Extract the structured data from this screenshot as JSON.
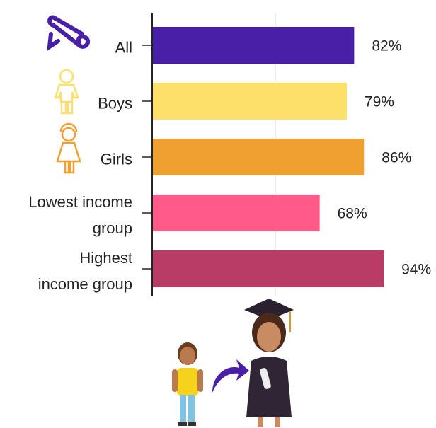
{
  "chart_data": {
    "type": "bar",
    "orientation": "horizontal",
    "categories": [
      "All",
      "Boys",
      "Girls",
      "Lowest income\ngroup",
      "Highest\nincome group"
    ],
    "values": [
      82,
      79,
      86,
      68,
      94
    ],
    "value_labels": [
      "82%",
      "79%",
      "86%",
      "68%",
      "94%"
    ],
    "colors": [
      "#4a1fa8",
      "#fde06a",
      "#f0a030",
      "#ff5a8a",
      "#b83c66"
    ],
    "xlim": [
      0,
      100
    ],
    "xticks": [
      50
    ],
    "grid": true
  }
}
